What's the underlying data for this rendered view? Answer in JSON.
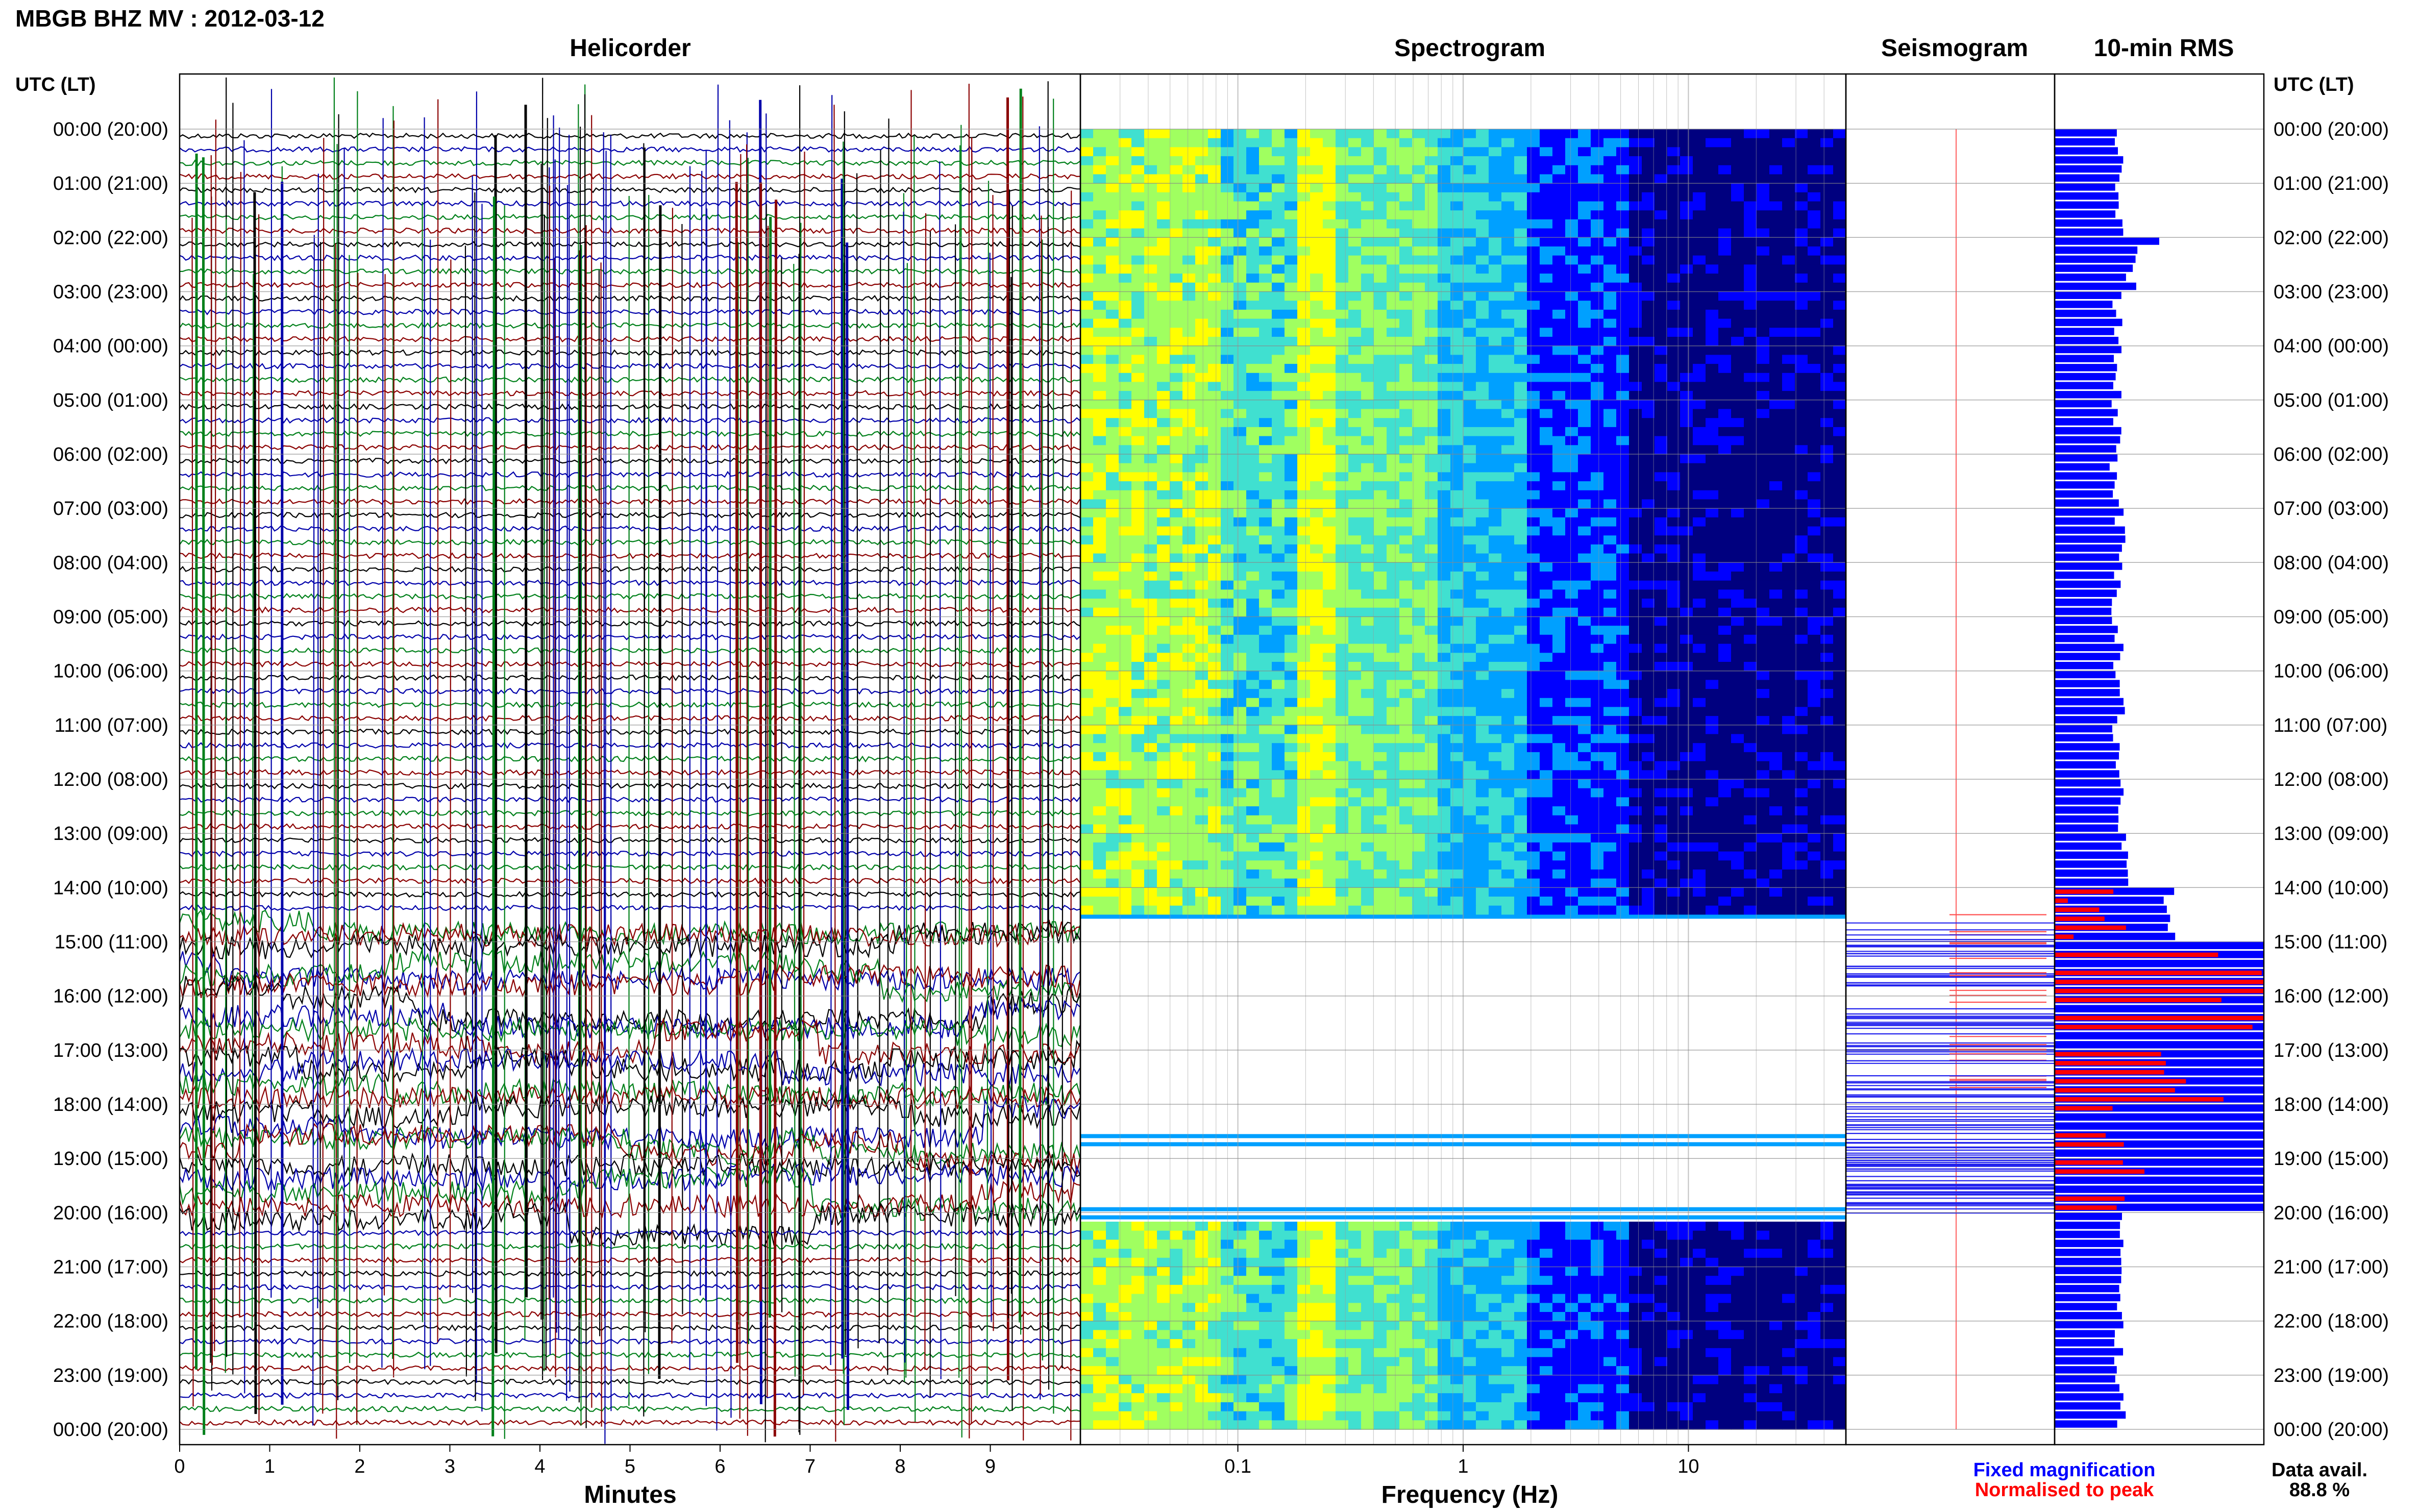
{
  "chart_data": {
    "type": "heatmap",
    "title": "MBGB BHZ MV : 2012-03-12",
    "panels": {
      "helicorder": {
        "title": "Helicorder",
        "xlabel": "Minutes",
        "xlim": [
          0,
          10
        ],
        "x_ticks": [
          "0",
          "1",
          "2",
          "3",
          "4",
          "5",
          "6",
          "7",
          "8",
          "9"
        ],
        "trace_colors": [
          "#000000",
          "#0000aa",
          "#00801a",
          "#8b0000"
        ]
      },
      "spectrogram": {
        "title": "Spectrogram",
        "xlabel": "Frequency (Hz)",
        "x_scale": "log",
        "xlim": [
          0.02,
          50
        ],
        "x_ticks": [
          {
            "value": 0.1,
            "label": "0.1"
          },
          {
            "value": 1,
            "label": "1"
          },
          {
            "value": 10,
            "label": "10"
          }
        ],
        "colormap": [
          "#00007f",
          "#0000ff",
          "#00a0ff",
          "#40e0d0",
          "#a0ff60",
          "#ffff00"
        ],
        "data_gap": {
          "start_hour": 14.4,
          "end_hour": 20.1
        }
      },
      "seismogram": {
        "title": "Seismogram"
      },
      "rms": {
        "title": "10-min RMS",
        "legend": [
          {
            "label": "Fixed magnification",
            "color": "#0000ff"
          },
          {
            "label": "Normalised to peak",
            "color": "#ff0000"
          }
        ],
        "data_availability_label": "Data avail.",
        "data_availability": "88.8 %",
        "hourly_blue": [
          0.31,
          0.3,
          0.37,
          0.3,
          0.29,
          0.3,
          0.29,
          0.31,
          0.3,
          0.3,
          0.31,
          0.3,
          0.3,
          0.33,
          0.55,
          1.0,
          1.0,
          1.0,
          1.0,
          1.0,
          0.31,
          0.3,
          0.31,
          0.31
        ],
        "hourly_red": [
          0,
          0,
          0,
          0,
          0,
          0,
          0,
          0,
          0,
          0,
          0,
          0,
          0,
          0,
          0.25,
          0.95,
          0.9,
          0.7,
          0.35,
          0.45,
          0,
          0,
          0,
          0
        ]
      }
    },
    "y_axis": {
      "label": "UTC (LT)",
      "ticks": [
        "00:00 (20:00)",
        "01:00 (21:00)",
        "02:00 (22:00)",
        "03:00 (23:00)",
        "04:00 (00:00)",
        "05:00 (01:00)",
        "06:00 (02:00)",
        "07:00 (03:00)",
        "08:00 (04:00)",
        "09:00 (05:00)",
        "10:00 (06:00)",
        "11:00 (07:00)",
        "12:00 (08:00)",
        "13:00 (09:00)",
        "14:00 (10:00)",
        "15:00 (11:00)",
        "16:00 (12:00)",
        "17:00 (13:00)",
        "18:00 (14:00)",
        "19:00 (15:00)",
        "20:00 (16:00)",
        "21:00 (17:00)",
        "22:00 (18:00)",
        "23:00 (19:00)",
        "00:00 (20:00)"
      ]
    }
  }
}
